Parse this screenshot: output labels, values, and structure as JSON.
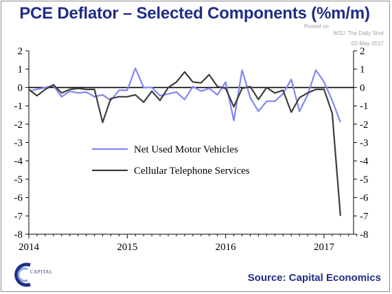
{
  "header": {
    "title": "PCE Deflator – Selected Components (%m/m)",
    "credit_posted": "Posted on",
    "credit_outlet": "WSJ: The Daily Shot",
    "credit_date": "02-May-2017"
  },
  "footer": {
    "source": "Source: Capital Economics",
    "logo_text": "CAPITAL"
  },
  "chart_data": {
    "type": "line",
    "title": "PCE Deflator – Selected Components (%m/m)",
    "xlabel": "",
    "ylabel": "",
    "xlim": [
      2014.0,
      2017.3
    ],
    "ylim": [
      -8,
      2
    ],
    "yticks": [
      2,
      1,
      0,
      -1,
      -2,
      -3,
      -4,
      -5,
      -6,
      -7,
      -8
    ],
    "xticks": [
      2014,
      2015,
      2016,
      2017
    ],
    "zero_line": true,
    "right_axis_mirrors_left": true,
    "grid": false,
    "legend_position": "center-left",
    "series": [
      {
        "name": "Net Used Motor Vehicles",
        "color": "#7f86f2",
        "x": [
          2014.0,
          2014.083,
          2014.167,
          2014.25,
          2014.333,
          2014.417,
          2014.5,
          2014.583,
          2014.667,
          2014.75,
          2014.833,
          2014.917,
          2015.0,
          2015.083,
          2015.167,
          2015.25,
          2015.333,
          2015.417,
          2015.5,
          2015.583,
          2015.667,
          2015.75,
          2015.833,
          2015.917,
          2016.0,
          2016.083,
          2016.167,
          2016.25,
          2016.333,
          2016.417,
          2016.5,
          2016.583,
          2016.667,
          2016.75,
          2016.833,
          2016.917,
          2017.0,
          2017.083,
          2017.167
        ],
        "values": [
          -0.2,
          -0.1,
          0.0,
          0.1,
          -0.5,
          -0.2,
          -0.3,
          -0.25,
          -0.5,
          -0.4,
          -0.7,
          -0.15,
          -0.15,
          1.05,
          0.0,
          0.0,
          -0.45,
          -0.35,
          -0.25,
          -0.65,
          0.05,
          -0.2,
          -0.05,
          -0.4,
          0.3,
          -1.8,
          0.95,
          -0.55,
          -1.3,
          -0.75,
          -0.75,
          -0.35,
          0.45,
          -1.3,
          -0.4,
          0.95,
          0.3,
          -0.7,
          -1.9
        ]
      },
      {
        "name": "Cellular Telephone Services",
        "color": "#3c3c3c",
        "x": [
          2014.0,
          2014.083,
          2014.167,
          2014.25,
          2014.333,
          2014.417,
          2014.5,
          2014.583,
          2014.667,
          2014.75,
          2014.833,
          2014.917,
          2015.0,
          2015.083,
          2015.167,
          2015.25,
          2015.333,
          2015.417,
          2015.5,
          2015.583,
          2015.667,
          2015.75,
          2015.833,
          2015.917,
          2016.0,
          2016.083,
          2016.167,
          2016.25,
          2016.333,
          2016.417,
          2016.5,
          2016.583,
          2016.667,
          2016.75,
          2016.833,
          2016.917,
          2017.0,
          2017.083,
          2017.167
        ],
        "values": [
          -0.1,
          -0.45,
          -0.1,
          0.15,
          -0.3,
          -0.1,
          -0.05,
          -0.1,
          -0.1,
          -1.9,
          -0.6,
          -0.5,
          -0.5,
          -0.4,
          -0.8,
          -0.2,
          -0.7,
          0.0,
          0.3,
          0.85,
          0.3,
          0.25,
          0.7,
          0.05,
          -0.05,
          -1.05,
          -0.05,
          0.05,
          -0.65,
          0.0,
          -0.3,
          -0.15,
          -1.35,
          -0.55,
          -0.3,
          -0.1,
          -0.1,
          -1.4,
          -7.0
        ]
      }
    ]
  }
}
